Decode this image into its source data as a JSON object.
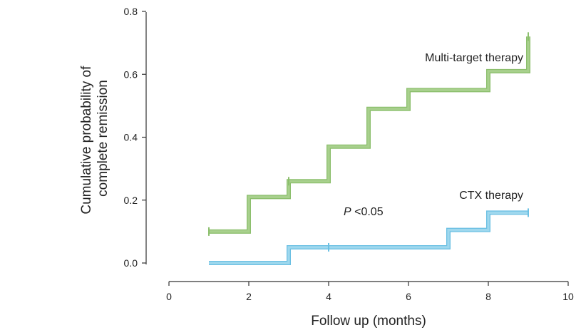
{
  "chart_data": {
    "type": "line",
    "xlabel": "Follow up (months)",
    "ylabel_lines": [
      "Cumulative probability of",
      "complete remission"
    ],
    "xlim": [
      0,
      10
    ],
    "ylim": [
      0,
      0.8
    ],
    "x_ticks": [
      0,
      2,
      4,
      6,
      8,
      10
    ],
    "y_ticks": [
      0.0,
      0.2,
      0.4,
      0.6,
      0.8
    ],
    "x_tick_labels": [
      "0",
      "2",
      "4",
      "6",
      "8",
      "10"
    ],
    "y_tick_labels": [
      "0.0",
      "0.2",
      "0.4",
      "0.6",
      "0.8"
    ],
    "grid": false,
    "step": true,
    "series": [
      {
        "name": "Multi-target therapy",
        "color": "#a8d08d",
        "outline": "#8cbf6d",
        "x": [
          1,
          2,
          3,
          4,
          5,
          6,
          8,
          9
        ],
        "y": [
          0.1,
          0.21,
          0.26,
          0.37,
          0.49,
          0.55,
          0.61,
          0.72
        ],
        "censor_x": [
          1,
          3,
          9
        ],
        "end_x": 9
      },
      {
        "name": "CTX therapy",
        "color": "#9fd8ee",
        "outline": "#6cc0e3",
        "x": [
          1,
          3,
          7,
          8,
          9
        ],
        "y": [
          0.0,
          0.05,
          0.105,
          0.16,
          0.16
        ],
        "censor_x": [
          4,
          9
        ],
        "end_x": 9
      }
    ],
    "annotations": [
      {
        "text_italic": "P",
        "text": " <0.05",
        "x": 4.4,
        "y": 0.165
      }
    ]
  }
}
